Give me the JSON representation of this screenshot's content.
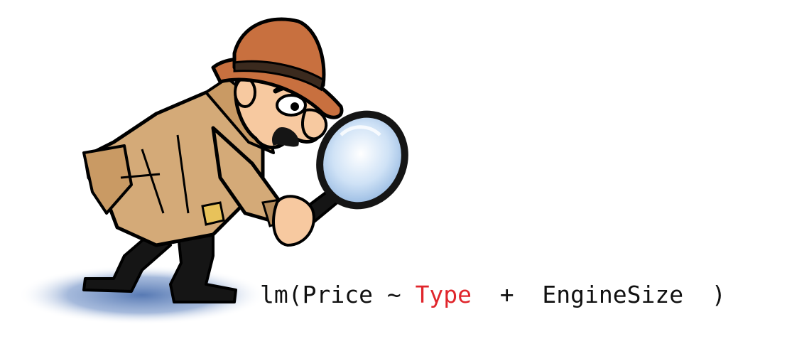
{
  "illustration": {
    "icon": "detective-with-magnifying-glass-icon",
    "colors": {
      "hat": "#c8703f",
      "hat_band": "#3b2a1e",
      "coat": "#d4aa78",
      "coat_shadow": "#b48a5a",
      "skin": "#f7c9a0",
      "pants": "#151515",
      "lens": "#bcd6f0",
      "shadow": "#5e80b8",
      "outline": "#000000"
    }
  },
  "formula": {
    "func": "lm(",
    "response": "Price",
    "tilde": " ~ ",
    "term1": "Type",
    "plus": "  +  ",
    "term2": "EngineSize",
    "close": "  )",
    "highlight_color": "#e0262c"
  }
}
